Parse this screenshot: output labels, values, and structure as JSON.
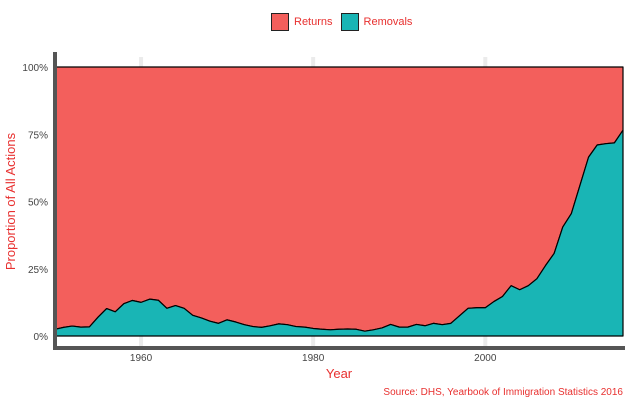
{
  "chart_data": {
    "type": "area",
    "stacked": "proportion",
    "title": "",
    "xlabel": "Year",
    "ylabel": "Proportion of All Actions",
    "caption": "Source: DHS, Yearbook of Immigration Statistics 2016",
    "xlim": [
      1950,
      2016
    ],
    "ylim": [
      0,
      1
    ],
    "x_ticks": [
      1960,
      1980,
      2000
    ],
    "x_tick_labels": [
      "1960",
      "1980",
      "2000"
    ],
    "y_ticks": [
      0,
      0.25,
      0.5,
      0.75,
      1.0
    ],
    "y_tick_labels": [
      "0%",
      "25%",
      "50%",
      "75%",
      "100%"
    ],
    "grid": true,
    "legend_position": "top",
    "x": [
      1950,
      1951,
      1952,
      1953,
      1954,
      1955,
      1956,
      1957,
      1958,
      1959,
      1960,
      1961,
      1962,
      1963,
      1964,
      1965,
      1966,
      1967,
      1968,
      1969,
      1970,
      1971,
      1972,
      1973,
      1974,
      1975,
      1976,
      1977,
      1978,
      1979,
      1980,
      1981,
      1982,
      1983,
      1984,
      1985,
      1986,
      1987,
      1988,
      1989,
      1990,
      1991,
      1992,
      1993,
      1994,
      1995,
      1996,
      1997,
      1998,
      1999,
      2000,
      2001,
      2002,
      2003,
      2004,
      2005,
      2006,
      2007,
      2008,
      2009,
      2010,
      2011,
      2012,
      2013,
      2014,
      2015,
      2016
    ],
    "series": [
      {
        "name": "Returns",
        "color": "#f35f5c",
        "values": [
          0.975,
          0.968,
          0.963,
          0.967,
          0.966,
          0.93,
          0.898,
          0.91,
          0.88,
          0.868,
          0.875,
          0.863,
          0.867,
          0.897,
          0.887,
          0.897,
          0.923,
          0.933,
          0.945,
          0.953,
          0.94,
          0.948,
          0.958,
          0.965,
          0.968,
          0.962,
          0.955,
          0.958,
          0.965,
          0.967,
          0.972,
          0.975,
          0.977,
          0.975,
          0.974,
          0.975,
          0.982,
          0.977,
          0.97,
          0.957,
          0.967,
          0.967,
          0.957,
          0.962,
          0.953,
          0.958,
          0.953,
          0.925,
          0.897,
          0.895,
          0.895,
          0.872,
          0.853,
          0.813,
          0.828,
          0.813,
          0.787,
          0.738,
          0.693,
          0.595,
          0.545,
          0.44,
          0.335,
          0.29,
          0.285,
          0.282,
          0.235
        ]
      },
      {
        "name": "Removals",
        "color": "#19b5b5",
        "values": [
          0.025,
          0.032,
          0.037,
          0.033,
          0.034,
          0.07,
          0.102,
          0.09,
          0.12,
          0.132,
          0.125,
          0.137,
          0.133,
          0.103,
          0.113,
          0.103,
          0.077,
          0.067,
          0.055,
          0.047,
          0.06,
          0.052,
          0.042,
          0.035,
          0.032,
          0.038,
          0.045,
          0.042,
          0.035,
          0.033,
          0.028,
          0.025,
          0.023,
          0.025,
          0.026,
          0.025,
          0.018,
          0.023,
          0.03,
          0.043,
          0.033,
          0.033,
          0.043,
          0.038,
          0.047,
          0.042,
          0.047,
          0.075,
          0.103,
          0.105,
          0.105,
          0.128,
          0.147,
          0.187,
          0.172,
          0.187,
          0.213,
          0.262,
          0.307,
          0.405,
          0.455,
          0.56,
          0.665,
          0.71,
          0.715,
          0.718,
          0.765
        ]
      }
    ]
  }
}
